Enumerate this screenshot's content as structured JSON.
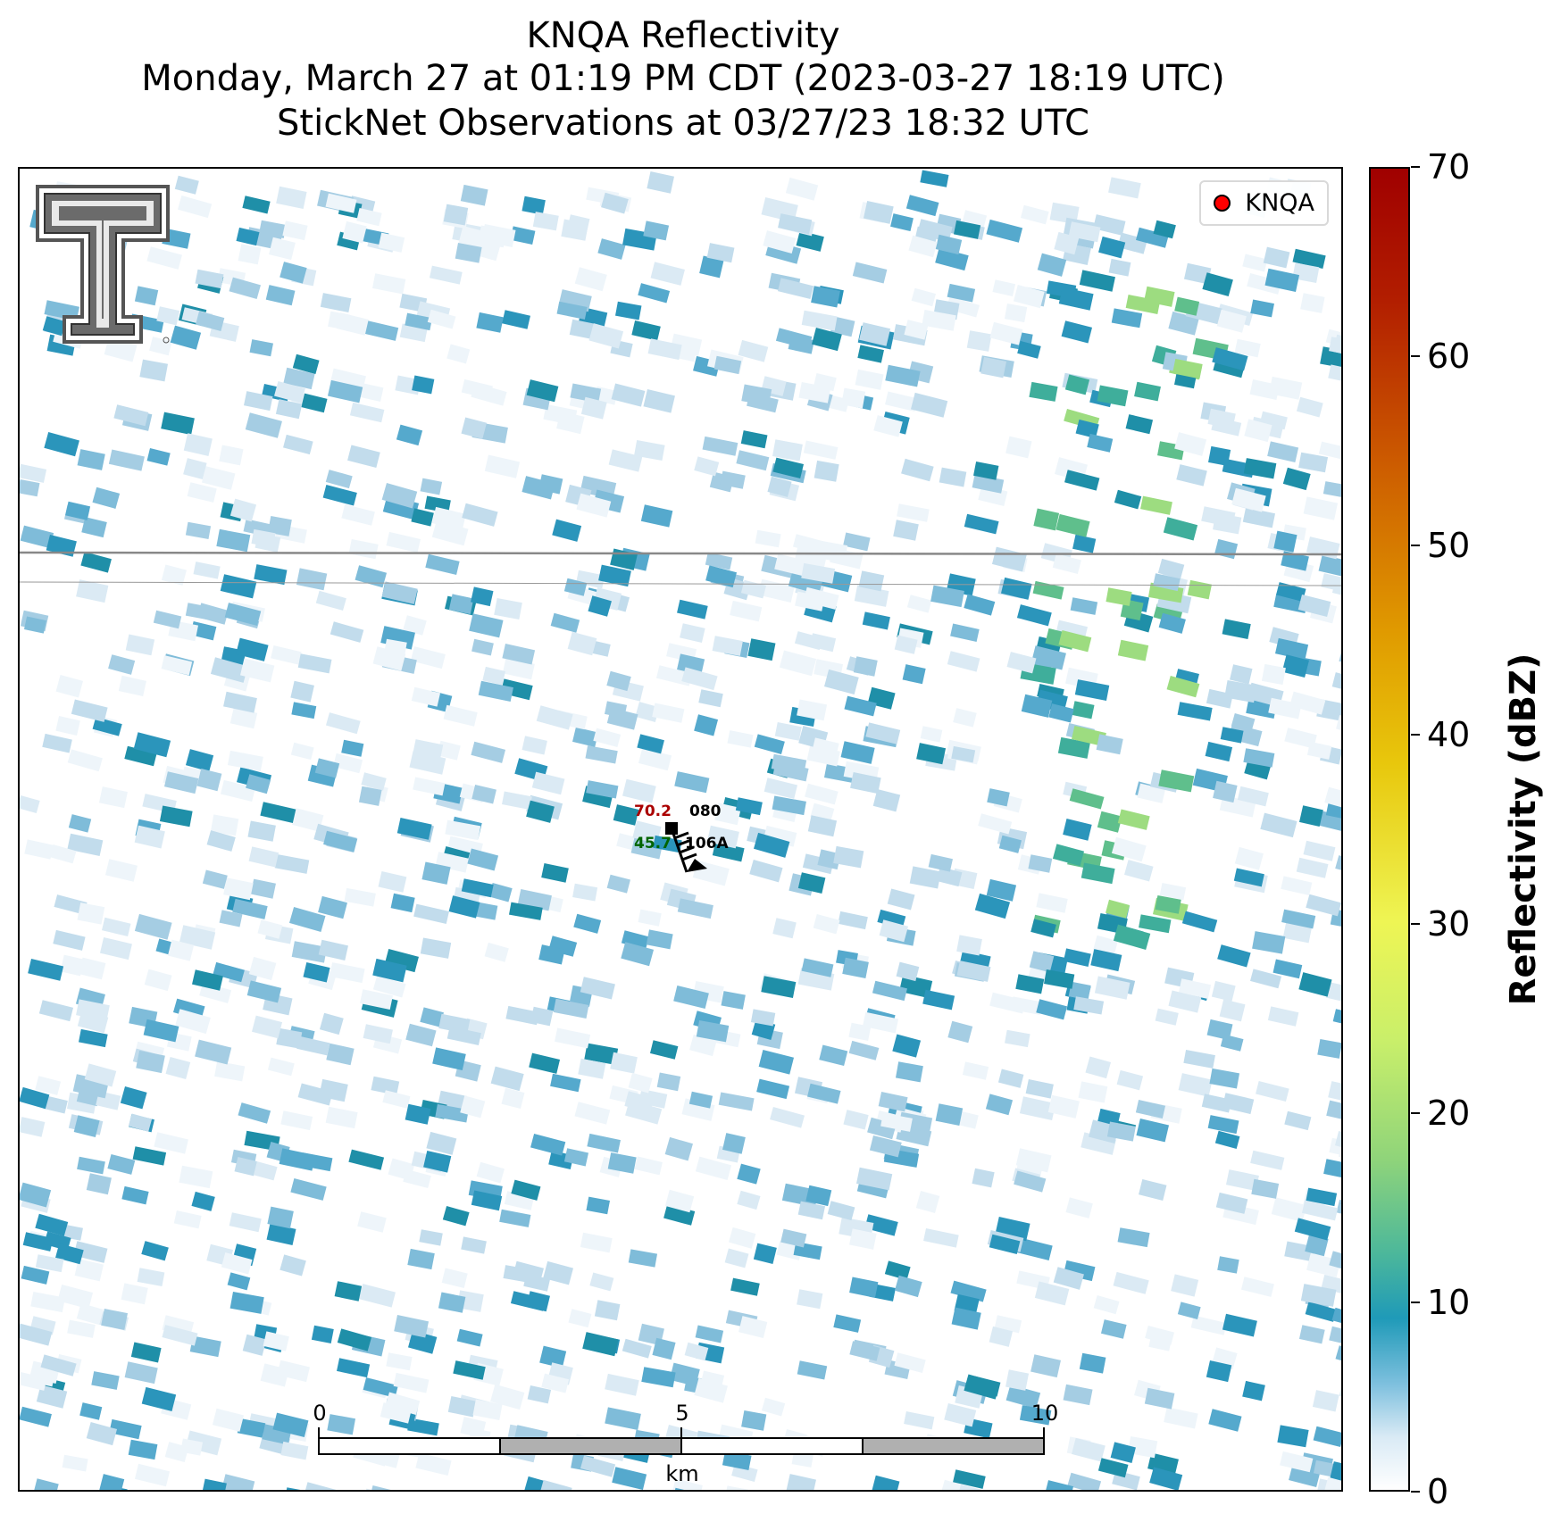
{
  "title": {
    "line1": "KNQA Reflectivity",
    "line2": "Monday, March 27 at 01:19 PM CDT (2023-03-27 18:19 UTC)",
    "line3": "StickNet Observations at 03/27/23 18:32 UTC"
  },
  "legend": {
    "label": "KNQA",
    "marker_color": "#ff0000"
  },
  "station": {
    "id_top": "080",
    "id_bottom": "106A",
    "temperature": "70.2",
    "dewpoint": "45.7",
    "temperature_color": "#aa0000",
    "dewpoint_color": "#006400"
  },
  "scale_bar": {
    "ticks": [
      "0",
      "5",
      "10"
    ],
    "unit": "km"
  },
  "colorbar": {
    "label": "Reflectivity (dBZ)",
    "ticks": [
      "0",
      "10",
      "20",
      "30",
      "40",
      "50",
      "60",
      "70"
    ],
    "min": 0,
    "max": 70
  },
  "logo": {
    "name": "texas-tech-double-t-logo"
  }
}
